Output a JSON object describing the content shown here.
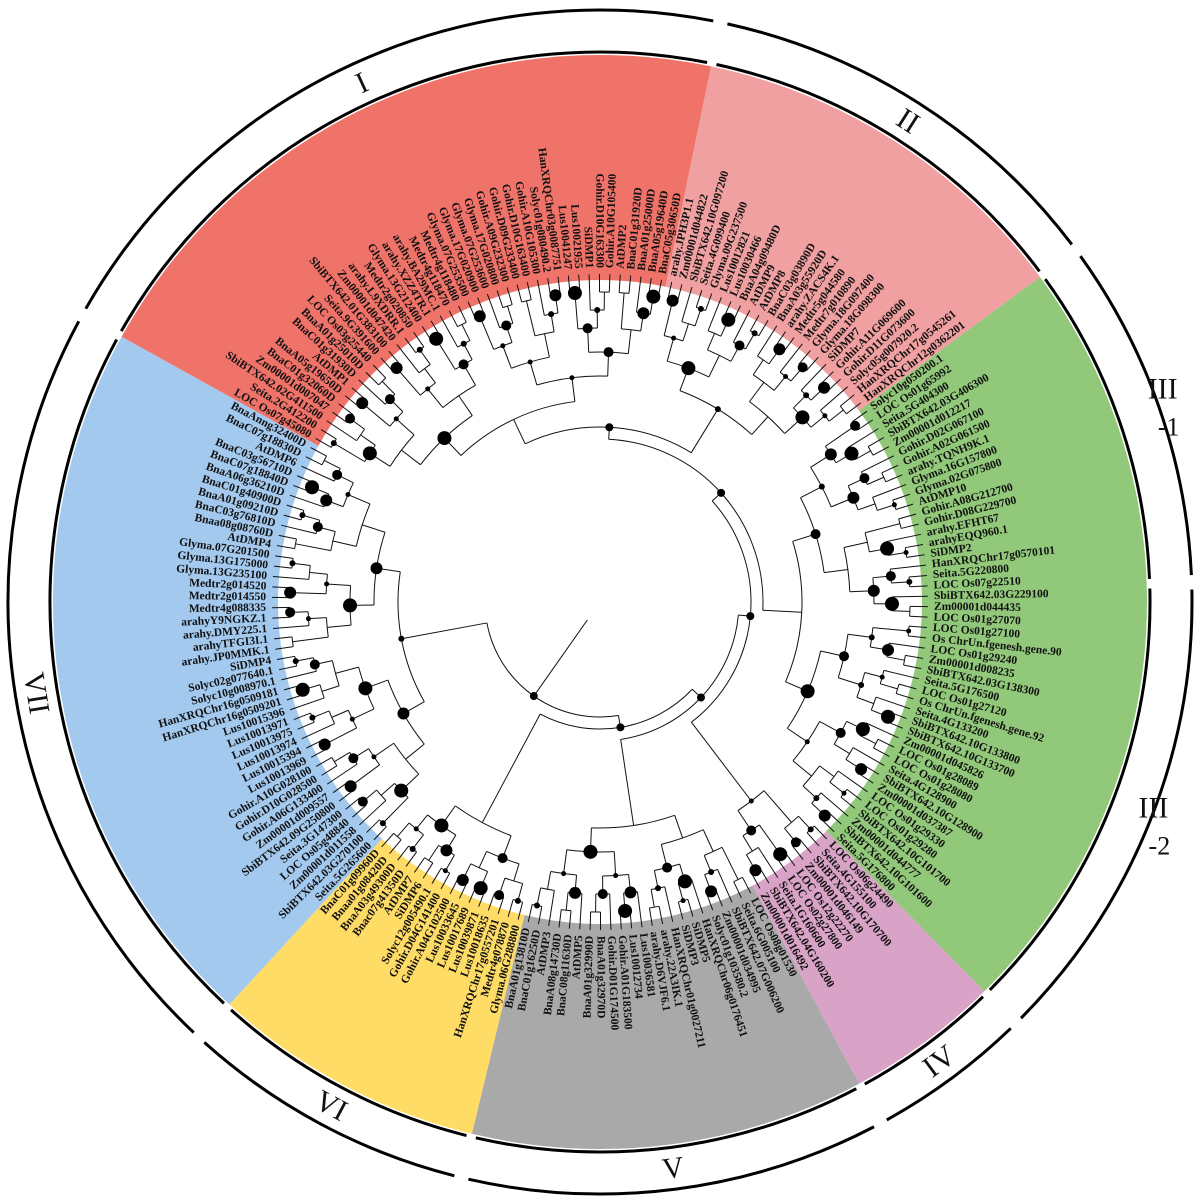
{
  "clades": [
    {
      "label": "I",
      "color": "#f07369",
      "subgroups": [
        {
          "label": "I",
          "sub": "",
          "leaves": [
            "LOC Os07g45080",
            "Seita.2G412200",
            "SbiBTX642.02G411500",
            "Zm00001d007047",
            "BnaC01g32060D",
            "BnaA05g19650D",
            "AtDMP1",
            "BnaC01g31930D",
            "BnaA01g25010D",
            "LOC Os03g25440",
            "Seita.9G391600",
            "SbiBTX642.01G383100",
            "Zm00001d047420",
            "arahy.L9XDRR.1",
            "Medtr2g020850",
            "Glyma.13G212400",
            "arahy.XZZ4TR.1",
            "arahy.BA29MC.1",
            "Medtr4g118470",
            "Medtr4g118480",
            "Glyma.07G253500",
            "Glyma.17G020900",
            "Glyma.07G253600",
            "Glyma.17G020800",
            "Gohir.A09G232300",
            "Gohir.D09G233400",
            "Gohir.D10G163400",
            "Gohir.A10G105300",
            "Solyc01g080490.2",
            "HanXRQChr03g0087751",
            "Lus10041247",
            "Lus10021955",
            "SiDMP1",
            "Gohir.D10G163300",
            "Gohir.A10G105400",
            "AtDMP2",
            "BnaC01g31920D",
            "BnaA01g25000D",
            "BnaA05g19640D",
            "BnaC05g30650D"
          ]
        }
      ]
    },
    {
      "label": "II",
      "color": "#f0a0a0",
      "subgroups": [
        {
          "label": "II",
          "sub": "",
          "leaves": [
            "arahy.JPH3P1.1",
            "Zm00001d044822",
            "SbiBTX642.10G097200",
            "Seita.4G099400",
            "Glyma.09G237500",
            "Lus10012821",
            "Lus10030466",
            "BnaA04g09480D",
            "AtDMP9",
            "AtDMP8",
            "BnaC03g03890D",
            "BnaA03g55920D",
            "arahy.ZACS4K.1",
            "Medtr5g044580",
            "Medtr7g010890",
            "Glyma.18G097400",
            "Glyma.18G098300",
            "SiDMP7",
            "Gohir.A11G069600",
            "Gohir.D11G073600",
            "Solyc05g007920.2",
            "HanXRQChr17g0545261",
            "HanXRQChr12g0362201"
          ]
        }
      ]
    },
    {
      "label": "III",
      "color": "#92c87a",
      "subgroups": [
        {
          "label": "III",
          "sub": "-1",
          "leaves": [
            "Solyc10g050200.1",
            "LOC Os01g65992",
            "Seita.5G404300",
            "SbiBTX642.03G406300",
            "Zm00001d012217",
            "Gohir.D02G067100",
            "Gohir.A02G061500",
            "arahy.TQNH9K.1",
            "Glyma.16G157800",
            "Glyma.02G075800",
            "AtDMP10",
            "Gohir.A08G212700",
            "Gohir.D08G229700",
            "arahy.EFHT67",
            "arahyEQQ960.1",
            "SiDMP2",
            "HanXRQChr17g0570101",
            "Seita.5G220800",
            "LOC Os07g22510"
          ]
        },
        {
          "label": "III",
          "sub": "-2",
          "leaves": [
            "SbiBTX642.03G229100",
            "Zm00001d044435",
            "LOC Os01g27070",
            "LOC Os01g27100",
            "Os ChrUn.fgenesh.gene.90",
            "LOC Os01g29240",
            "Zm00001d008235",
            "SbiBTX642.03G138300",
            "Seita.5G176500",
            "LOC Os01g27120",
            "Os ChrUn.fgenesh.gene.92",
            "Seita.4G133200",
            "SbiBTX642.10G133800",
            "SbiBTX642.10G133700",
            "Zm00001d045826",
            "LOC Os01g28089",
            "LOC Os01g28080",
            "Seita.4G128900",
            "SbiBTX642.10G128900",
            "Zm00001d037387",
            "LOC Os01g29330",
            "LOC Os01g29280",
            "SbiBTX642.10G101700",
            "Zm00001d044777",
            "SbiBTX642.10G101600",
            "Seita.5G176800"
          ]
        }
      ]
    },
    {
      "label": "IV",
      "color": "#d8a3c6",
      "subgroups": [
        {
          "label": "IV",
          "sub": "",
          "leaves": [
            "LOC Os06g24490",
            "Seita.4G155100",
            "SbiBTX642.10G170700",
            "Zm00001d046149",
            "LOC Os12g22270",
            "LOC Os02g27800",
            "Seita.1G160600",
            "SbiBTX642.04G160200",
            "Zm00001d016492"
          ]
        }
      ]
    },
    {
      "label": "V",
      "color": "#a9a9a9",
      "subgroups": [
        {
          "label": "V",
          "sub": "",
          "leaves": [
            "LOC Os08g01530",
            "Seita.6G005100",
            "SbiBTX642.07G006200",
            "Zm00001d034995",
            "Solyc01g103580.2",
            "HanXRQChr06g0176451",
            "SiDMP5",
            "SiDMP3",
            "HanXRQChr01g0027211",
            "arahy.22A3IK.1",
            "arahy.D6VJF6.1",
            "Lus10036581",
            "Lus10012734",
            "Gohir.A01G183500",
            "Gohir.D01G174500",
            "BnaA01g32970D",
            "BnaA01g32990D",
            "AtDMP5",
            "BnaC08g11630D",
            "BnaA08g14730D",
            "AtDMP3",
            "BnaC01g16250D",
            "BnaA01g13810D"
          ]
        }
      ]
    },
    {
      "label": "VI",
      "color": "#ffdc66",
      "subgroups": [
        {
          "label": "VI",
          "sub": "",
          "leaves": [
            "Glyma.06G288800",
            "Medtr4g078870",
            "HanXRQChr17g0557201",
            "Lus10018635",
            "Lus10039871",
            "Lus10017689",
            "Lus10033645",
            "Gohir.A04G102500",
            "Gohir.D04G141400",
            "Solyc12g005490.1",
            "SiDMP6",
            "AtDMP7",
            "Bnac07g41350D",
            "BnaA03g49300D",
            "Bnaa01g08420D",
            "BnaC01g09960D"
          ]
        }
      ]
    },
    {
      "label": "VII",
      "color": "#a3c9ee",
      "subgroups": [
        {
          "label": "VII",
          "sub": "",
          "leaves": [
            "Seita.5G265600",
            "SbiBTX642.03G270100",
            "Zm00001d011558",
            "LOC Os05g48840",
            "Seita.3G147300",
            "SbiBTX642.09G250800",
            "Zm00001d009557",
            "Gohir.A06G133400",
            "Gohir.D10G028500",
            "Gohir.A10G028100",
            "Lus10013969",
            "Lus10015394",
            "Lus10013974",
            "Lus10013975",
            "Lus10013971",
            "Lus10015396",
            "HanXRQChr16g0509201",
            "HanXRQChr16g0509181",
            "Solyc10g008970.1",
            "Solyc02g077640.1",
            "SiDMP4",
            "arahy.JP0MMK.1",
            "arahyTFGI3I.1",
            "arahy.DMY225.1",
            "arahyY9NGKZ.1",
            "Medtr4g088335",
            "Medtr2g014550",
            "Medtr2g014520",
            "Glyma.13G235100",
            "Glyma.13G175000",
            "Glyma.07G201500",
            "AtDMP4",
            "Bnaa08g08760D",
            "BnaC03g76810D",
            "BnaA01g09210D",
            "BnaC01g40900D",
            "BnaA06g36210D",
            "BnaC07g18840D",
            "BnaC03g56710D",
            "AtDMP6",
            "BnaC07g18830D",
            "BnaAnng32400D"
          ]
        }
      ]
    }
  ]
}
